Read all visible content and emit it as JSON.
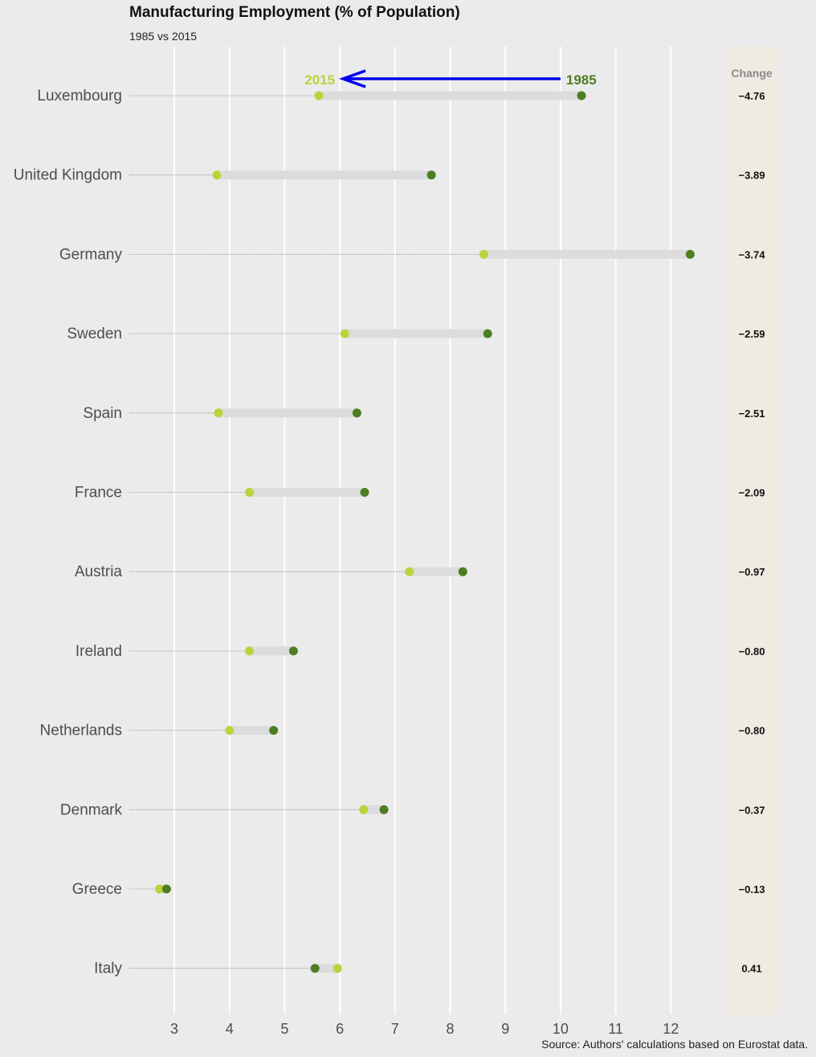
{
  "title": "Manufacturing Employment (% of Population)",
  "subtitle": "1985 vs 2015",
  "source": "Source: Authors' calculations based on Eurostat data.",
  "colors": {
    "y1985": "#4e7d22",
    "y2015": "#b9d43a",
    "arrow": "#0000ee",
    "change_panel": "#efebe2",
    "segment": "#dcdcdc",
    "leader": "#888888",
    "grid": "#ffffff"
  },
  "chart_data": {
    "type": "dumbbell",
    "title": "Manufacturing Employment (% of Population)",
    "subtitle": "1985 vs 2015",
    "xlabel": "",
    "ylabel": "",
    "xlim": [
      2.1,
      12.5
    ],
    "x_ticks": [
      3,
      4,
      5,
      6,
      7,
      8,
      9,
      10,
      11,
      12
    ],
    "grid": true,
    "change_header": "Change",
    "annotation": {
      "label_start": "1985",
      "label_end": "2015",
      "from": 10,
      "to": 6
    },
    "series": [
      {
        "name": "1985",
        "key": "v1985"
      },
      {
        "name": "2015",
        "key": "v2015"
      }
    ],
    "rows": [
      {
        "country": "Luxembourg",
        "v1985": 10.38,
        "v2015": 5.62,
        "change": "−4.76"
      },
      {
        "country": "United Kingdom",
        "v1985": 7.66,
        "v2015": 3.77,
        "change": "−3.89"
      },
      {
        "country": "Germany",
        "v1985": 12.35,
        "v2015": 8.61,
        "change": "−3.74"
      },
      {
        "country": "Sweden",
        "v1985": 8.68,
        "v2015": 6.09,
        "change": "−2.59"
      },
      {
        "country": "Spain",
        "v1985": 6.31,
        "v2015": 3.8,
        "change": "−2.51"
      },
      {
        "country": "France",
        "v1985": 6.45,
        "v2015": 4.36,
        "change": "−2.09"
      },
      {
        "country": "Austria",
        "v1985": 8.23,
        "v2015": 7.26,
        "change": "−0.97"
      },
      {
        "country": "Ireland",
        "v1985": 5.16,
        "v2015": 4.36,
        "change": "−0.80"
      },
      {
        "country": "Netherlands",
        "v1985": 4.8,
        "v2015": 4.0,
        "change": "−0.80"
      },
      {
        "country": "Denmark",
        "v1985": 6.8,
        "v2015": 6.43,
        "change": "−0.37"
      },
      {
        "country": "Greece",
        "v1985": 2.86,
        "v2015": 2.73,
        "change": "−0.13"
      },
      {
        "country": "Italy",
        "v1985": 5.55,
        "v2015": 5.96,
        "change": "0.41"
      }
    ]
  }
}
